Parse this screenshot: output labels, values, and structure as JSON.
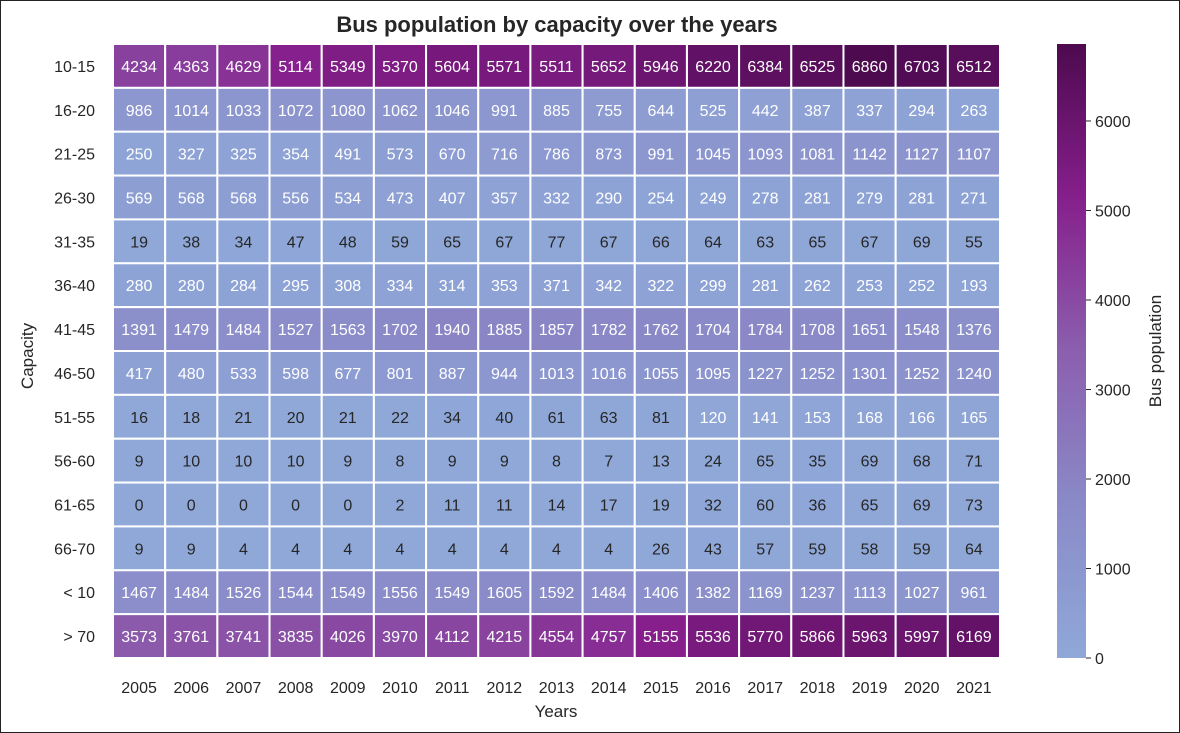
{
  "chart_data": {
    "type": "heatmap",
    "title": "Bus population by capacity over the years",
    "xlabel": "Years",
    "ylabel": "Capacity",
    "colorbar_label": "Bus population",
    "x": [
      "2005",
      "2006",
      "2007",
      "2008",
      "2009",
      "2010",
      "2011",
      "2012",
      "2013",
      "2014",
      "2015",
      "2016",
      "2017",
      "2018",
      "2019",
      "2020",
      "2021"
    ],
    "y": [
      "10-15",
      "16-20",
      "21-25",
      "26-30",
      "31-35",
      "36-40",
      "41-45",
      "46-50",
      "51-55",
      "56-60",
      "61-65",
      "66-70",
      "< 10",
      "> 70"
    ],
    "values": [
      [
        4234,
        4363,
        4629,
        5114,
        5349,
        5370,
        5604,
        5571,
        5511,
        5652,
        5946,
        6220,
        6384,
        6525,
        6860,
        6703,
        6512
      ],
      [
        986,
        1014,
        1033,
        1072,
        1080,
        1062,
        1046,
        991,
        885,
        755,
        644,
        525,
        442,
        387,
        337,
        294,
        263
      ],
      [
        250,
        327,
        325,
        354,
        491,
        573,
        670,
        716,
        786,
        873,
        991,
        1045,
        1093,
        1081,
        1142,
        1127,
        1107
      ],
      [
        569,
        568,
        568,
        556,
        534,
        473,
        407,
        357,
        332,
        290,
        254,
        249,
        278,
        281,
        279,
        281,
        271
      ],
      [
        19,
        38,
        34,
        47,
        48,
        59,
        65,
        67,
        77,
        67,
        66,
        64,
        63,
        65,
        67,
        69,
        55
      ],
      [
        280,
        280,
        284,
        295,
        308,
        334,
        314,
        353,
        371,
        342,
        322,
        299,
        281,
        262,
        253,
        252,
        193
      ],
      [
        1391,
        1479,
        1484,
        1527,
        1563,
        1702,
        1940,
        1885,
        1857,
        1782,
        1762,
        1704,
        1784,
        1708,
        1651,
        1548,
        1376
      ],
      [
        417,
        480,
        533,
        598,
        677,
        801,
        887,
        944,
        1013,
        1016,
        1055,
        1095,
        1227,
        1252,
        1301,
        1252,
        1240
      ],
      [
        16,
        18,
        21,
        20,
        21,
        22,
        34,
        40,
        61,
        63,
        81,
        120,
        141,
        153,
        168,
        166,
        165
      ],
      [
        9,
        10,
        10,
        10,
        9,
        8,
        9,
        9,
        8,
        7,
        13,
        24,
        65,
        35,
        69,
        68,
        71
      ],
      [
        0,
        0,
        0,
        0,
        0,
        2,
        11,
        11,
        14,
        17,
        19,
        32,
        60,
        36,
        65,
        69,
        73
      ],
      [
        9,
        9,
        4,
        4,
        4,
        4,
        4,
        4,
        4,
        4,
        26,
        43,
        57,
        59,
        58,
        59,
        64
      ],
      [
        1467,
        1484,
        1526,
        1544,
        1549,
        1556,
        1549,
        1605,
        1592,
        1484,
        1406,
        1382,
        1169,
        1237,
        1113,
        1027,
        961
      ],
      [
        3573,
        3761,
        3741,
        3835,
        4026,
        3970,
        4112,
        4215,
        4554,
        4757,
        5155,
        5536,
        5770,
        5866,
        5963,
        5997,
        6169
      ]
    ],
    "vmin": 0,
    "vmax": 6860,
    "colorbar_ticks": [
      0,
      1000,
      2000,
      3000,
      4000,
      5000,
      6000
    ],
    "annotated": true,
    "colormap_colors": [
      "#8fa8d8",
      "#8a8ac8",
      "#8b5fae",
      "#861f8c",
      "#4d0a4f"
    ]
  }
}
